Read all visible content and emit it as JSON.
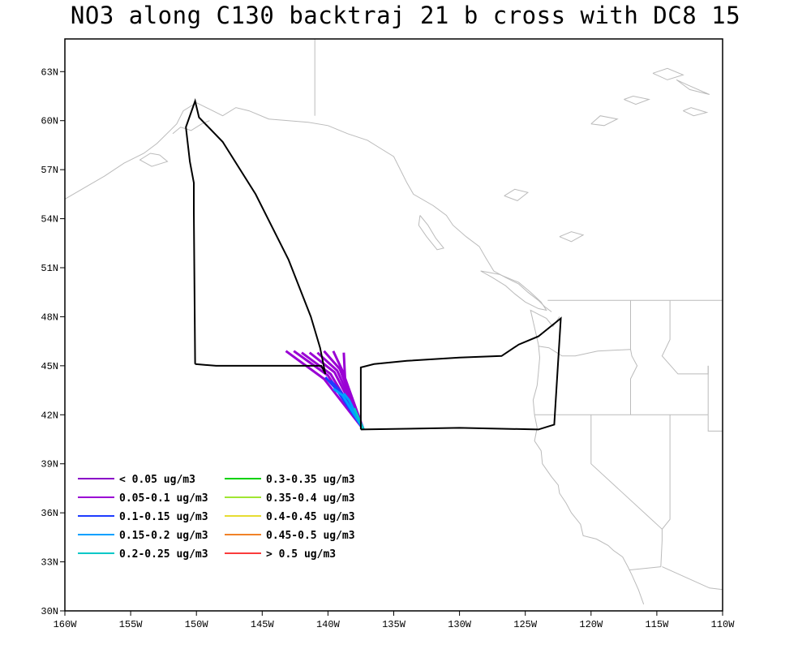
{
  "title": "NO3 along C130 backtraj 21 b cross with DC8 15",
  "x_axis": {
    "ticks": [
      {
        "lon": -160,
        "label": "160W"
      },
      {
        "lon": -155,
        "label": "155W"
      },
      {
        "lon": -150,
        "label": "150W"
      },
      {
        "lon": -145,
        "label": "145W"
      },
      {
        "lon": -140,
        "label": "140W"
      },
      {
        "lon": -135,
        "label": "135W"
      },
      {
        "lon": -130,
        "label": "130W"
      },
      {
        "lon": -125,
        "label": "125W"
      },
      {
        "lon": -120,
        "label": "120W"
      },
      {
        "lon": -115,
        "label": "115W"
      },
      {
        "lon": -110,
        "label": "110W"
      }
    ]
  },
  "y_axis": {
    "ticks": [
      {
        "lat": 30,
        "label": "30N"
      },
      {
        "lat": 33,
        "label": "33N"
      },
      {
        "lat": 36,
        "label": "36N"
      },
      {
        "lat": 39,
        "label": "39N"
      },
      {
        "lat": 42,
        "label": "42N"
      },
      {
        "lat": 45,
        "label": "45N"
      },
      {
        "lat": 48,
        "label": "48N"
      },
      {
        "lat": 51,
        "label": "51N"
      },
      {
        "lat": 54,
        "label": "54N"
      },
      {
        "lat": 57,
        "label": "57N"
      },
      {
        "lat": 60,
        "label": "60N"
      },
      {
        "lat": 63,
        "label": "63N"
      }
    ]
  },
  "extent": {
    "lon_min": -160,
    "lon_max": -110,
    "lat_min": 30,
    "lat_max": 65
  },
  "legend": {
    "items": [
      {
        "label": "< 0.05 ug/m3",
        "color": "#8a00c8"
      },
      {
        "label": "0.05-0.1 ug/m3",
        "color": "#9a00d4"
      },
      {
        "label": "0.1-0.15 ug/m3",
        "color": "#1e3cff"
      },
      {
        "label": "0.15-0.2 ug/m3",
        "color": "#00a0ff"
      },
      {
        "label": "0.2-0.25 ug/m3",
        "color": "#00c8c8"
      },
      {
        "label": "0.3-0.35 ug/m3",
        "color": "#00d200"
      },
      {
        "label": "0.35-0.4 ug/m3",
        "color": "#a0e632"
      },
      {
        "label": "0.4-0.45 ug/m3",
        "color": "#e6dc32"
      },
      {
        "label": "0.45-0.5 ug/m3",
        "color": "#f08228"
      },
      {
        "label": "> 0.5 ug/m3",
        "color": "#fa3c3c"
      }
    ]
  },
  "flight_track": [
    [
      -137.5,
      41.1
    ],
    [
      -137.5,
      44.9
    ],
    [
      -136.5,
      45.1
    ],
    [
      -134.0,
      45.3
    ],
    [
      -130.0,
      45.5
    ],
    [
      -126.8,
      45.6
    ],
    [
      -125.5,
      46.3
    ],
    [
      -124.0,
      46.8
    ],
    [
      -122.3,
      47.9
    ],
    [
      -122.8,
      41.4
    ],
    [
      -124.0,
      41.1
    ],
    [
      -130.0,
      41.2
    ],
    [
      -137.5,
      41.1
    ]
  ],
  "flight_track_2": [
    [
      -150.1,
      45.1
    ],
    [
      -148.5,
      45.0
    ],
    [
      -146.0,
      45.0
    ],
    [
      -143.0,
      45.0
    ],
    [
      -140.5,
      45.0
    ],
    [
      -140.2,
      44.5
    ],
    [
      -140.6,
      46.1
    ],
    [
      -141.3,
      48.0
    ],
    [
      -143.0,
      51.5
    ],
    [
      -145.5,
      55.5
    ],
    [
      -148.0,
      58.7
    ],
    [
      -149.8,
      60.2
    ],
    [
      -150.1,
      61.2
    ],
    [
      -150.8,
      59.6
    ],
    [
      -150.5,
      57.5
    ],
    [
      -150.2,
      56.2
    ],
    [
      -150.2,
      54.4
    ],
    [
      -150.1,
      45.1
    ]
  ],
  "backtraj_series": [
    {
      "color": "#9a00d4",
      "lines": [
        [
          [
            -137.3,
            41.1
          ],
          [
            -140.3,
            44.2
          ],
          [
            -143.2,
            45.9
          ]
        ],
        [
          [
            -137.3,
            41.1
          ],
          [
            -140.0,
            44.4
          ],
          [
            -142.6,
            45.9
          ]
        ],
        [
          [
            -137.3,
            41.1
          ],
          [
            -139.8,
            44.5
          ],
          [
            -142.0,
            45.8
          ]
        ],
        [
          [
            -137.3,
            41.1
          ],
          [
            -139.5,
            44.6
          ],
          [
            -141.4,
            45.8
          ]
        ],
        [
          [
            -137.3,
            41.1
          ],
          [
            -139.3,
            44.7
          ],
          [
            -140.8,
            45.8
          ]
        ],
        [
          [
            -137.3,
            41.1
          ],
          [
            -139.1,
            44.8
          ],
          [
            -140.3,
            45.9
          ]
        ],
        [
          [
            -137.3,
            41.1
          ],
          [
            -138.9,
            44.7
          ],
          [
            -139.6,
            45.9
          ]
        ],
        [
          [
            -137.3,
            41.1
          ],
          [
            -138.7,
            44.2
          ],
          [
            -138.8,
            45.8
          ]
        ]
      ]
    },
    {
      "color": "#1e3cff",
      "lines": [
        [
          [
            -137.3,
            41.1
          ],
          [
            -139.4,
            43.6
          ],
          [
            -140.2,
            44.3
          ]
        ],
        [
          [
            -137.3,
            41.1
          ],
          [
            -139.0,
            43.4
          ],
          [
            -139.8,
            44.1
          ]
        ]
      ]
    },
    {
      "color": "#00a0ff",
      "lines": [
        [
          [
            -137.3,
            41.1
          ],
          [
            -138.9,
            43.2
          ],
          [
            -139.6,
            43.6
          ]
        ],
        [
          [
            -137.3,
            41.1
          ],
          [
            -138.4,
            42.9
          ],
          [
            -138.8,
            43.3
          ]
        ]
      ]
    },
    {
      "color": "#00c8c8",
      "lines": [
        [
          [
            -137.3,
            41.1
          ],
          [
            -138.0,
            42.4
          ]
        ],
        [
          [
            -137.3,
            41.1
          ],
          [
            -137.8,
            42.0
          ]
        ]
      ]
    }
  ],
  "coastline_color": "#bbbbbb",
  "frame_color": "#000000"
}
